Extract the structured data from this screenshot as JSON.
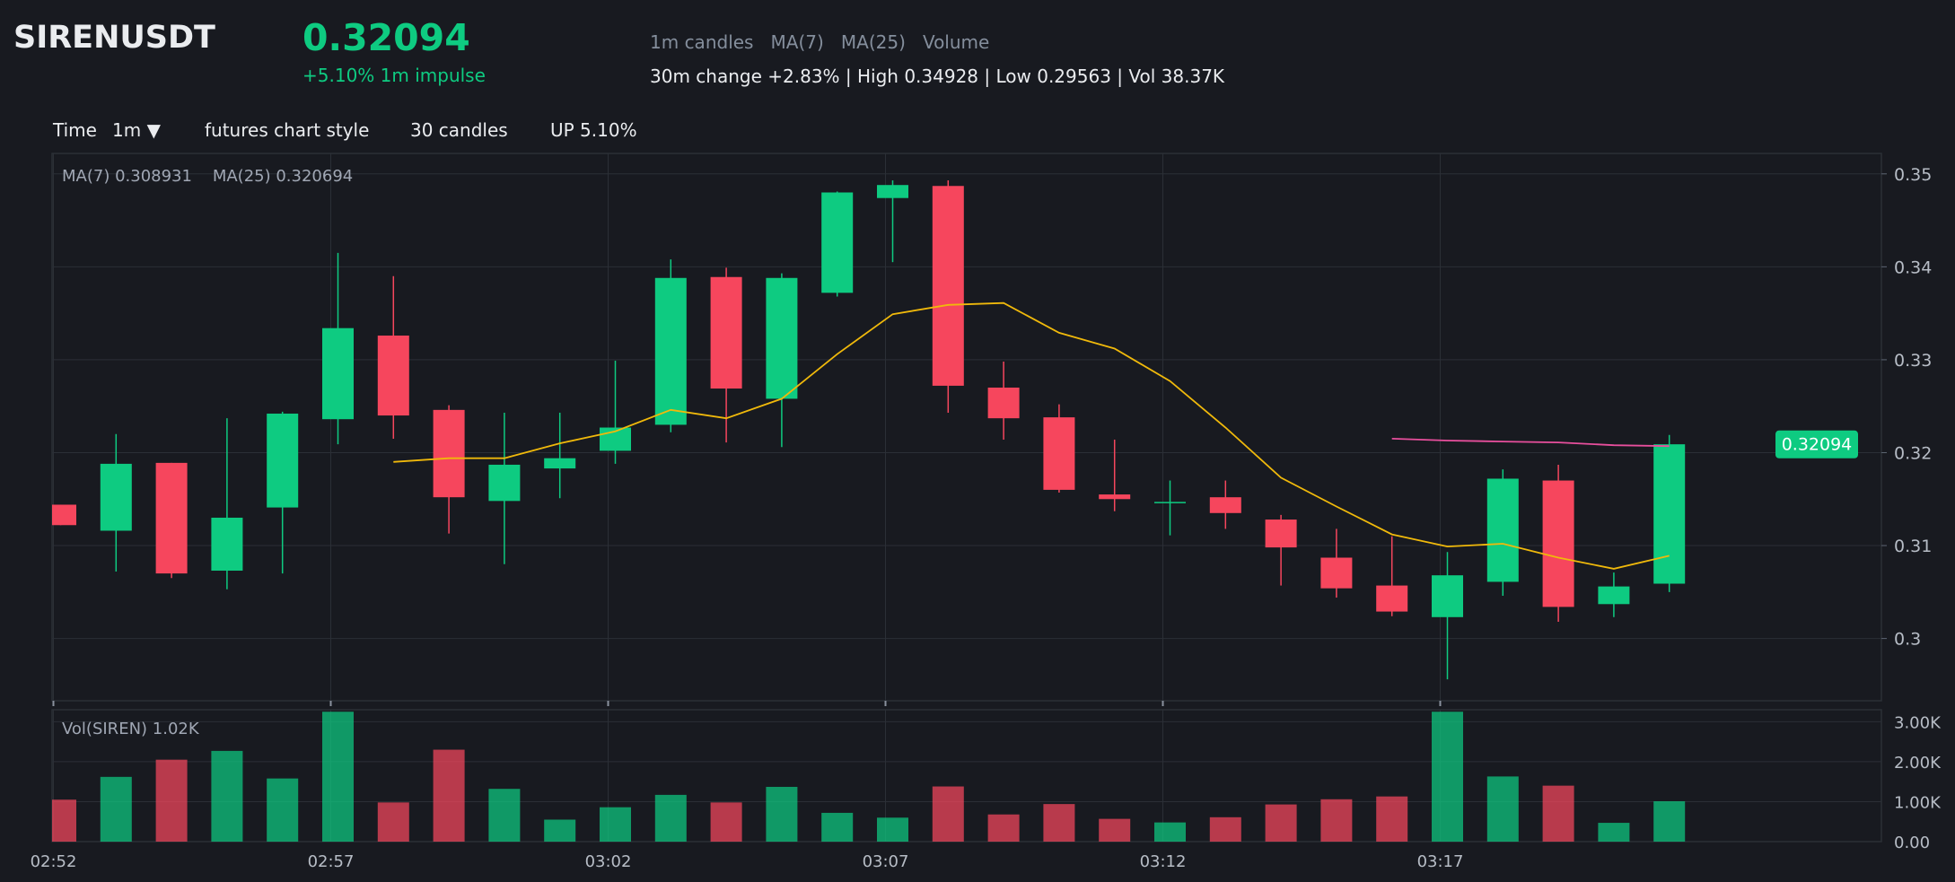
{
  "header": {
    "symbol": "SIRENUSDT",
    "price": "0.32094",
    "impulse": "+5.10% 1m impulse",
    "meta": "1m candles   MA(7)   MA(25)   Volume",
    "stats": "30m change +2.83% | High 0.34928 | Low 0.29563 | Vol 38.37K"
  },
  "toolbar": {
    "time_label": "Time",
    "interval": "1m ▼",
    "style": "futures chart style",
    "candles": "30 candles",
    "direction": "UP 5.10%"
  },
  "legend": {
    "ma": "MA(7) 0.308931    MA(25) 0.320694",
    "volume": "Vol(SIREN) 1.02K"
  },
  "colors": {
    "background": "#181a20",
    "up": "#0ecb81",
    "down": "#f6465d",
    "ma7": "#f0b90b",
    "ma25": "#e84f9d",
    "grid": "#2b2f36",
    "axis_text": "#b7bdc6"
  },
  "chart_data": {
    "type": "candlestick",
    "interval": "1m",
    "price_ticks": [
      0.3,
      0.31,
      0.32,
      0.33,
      0.34,
      0.35
    ],
    "price_range": [
      0.2933,
      0.3522
    ],
    "volume_ticks": [
      "0.00",
      "1.00K",
      "2.00K",
      "3.00K"
    ],
    "volume_range": [
      0,
      3300
    ],
    "time_ticks": [
      "02:52",
      "02:57",
      "03:02",
      "03:07",
      "03:12",
      "03:17"
    ],
    "last_price_label": "0.32094",
    "candles": [
      {
        "t": "02:52",
        "o": 0.3144,
        "h": 0.3144,
        "l": 0.3122,
        "c": 0.3122,
        "v": 1050
      },
      {
        "t": "02:53",
        "o": 0.3116,
        "h": 0.322,
        "l": 0.3072,
        "c": 0.3188,
        "v": 1620
      },
      {
        "t": "02:54",
        "o": 0.3189,
        "h": 0.3189,
        "l": 0.3065,
        "c": 0.307,
        "v": 2050
      },
      {
        "t": "02:55",
        "o": 0.3073,
        "h": 0.3237,
        "l": 0.3053,
        "c": 0.313,
        "v": 2270
      },
      {
        "t": "02:56",
        "o": 0.3141,
        "h": 0.3244,
        "l": 0.307,
        "c": 0.3242,
        "v": 1580
      },
      {
        "t": "02:57",
        "o": 0.3236,
        "h": 0.3415,
        "l": 0.3209,
        "c": 0.3334,
        "v": 3250
      },
      {
        "t": "02:58",
        "o": 0.3326,
        "h": 0.339,
        "l": 0.3215,
        "c": 0.324,
        "v": 980
      },
      {
        "t": "02:59",
        "o": 0.3246,
        "h": 0.3251,
        "l": 0.3113,
        "c": 0.3152,
        "v": 2300
      },
      {
        "t": "03:00",
        "o": 0.3148,
        "h": 0.3243,
        "l": 0.308,
        "c": 0.3187,
        "v": 1320
      },
      {
        "t": "03:01",
        "o": 0.3183,
        "h": 0.3243,
        "l": 0.3151,
        "c": 0.3194,
        "v": 550
      },
      {
        "t": "03:02",
        "o": 0.3202,
        "h": 0.3299,
        "l": 0.3188,
        "c": 0.3227,
        "v": 860
      },
      {
        "t": "03:03",
        "o": 0.323,
        "h": 0.3408,
        "l": 0.3222,
        "c": 0.3388,
        "v": 1170
      },
      {
        "t": "03:04",
        "o": 0.3389,
        "h": 0.3399,
        "l": 0.3211,
        "c": 0.3269,
        "v": 980
      },
      {
        "t": "03:05",
        "o": 0.3258,
        "h": 0.3393,
        "l": 0.3206,
        "c": 0.3388,
        "v": 1370
      },
      {
        "t": "03:06",
        "o": 0.3372,
        "h": 0.3481,
        "l": 0.3368,
        "c": 0.348,
        "v": 720
      },
      {
        "t": "03:07",
        "o": 0.3474,
        "h": 0.3493,
        "l": 0.3405,
        "c": 0.3488,
        "v": 600
      },
      {
        "t": "03:08",
        "o": 0.3487,
        "h": 0.3493,
        "l": 0.3243,
        "c": 0.3272,
        "v": 1380
      },
      {
        "t": "03:09",
        "o": 0.327,
        "h": 0.3298,
        "l": 0.3214,
        "c": 0.3237,
        "v": 680
      },
      {
        "t": "03:10",
        "o": 0.3238,
        "h": 0.3252,
        "l": 0.3157,
        "c": 0.316,
        "v": 940
      },
      {
        "t": "03:11",
        "o": 0.3155,
        "h": 0.3214,
        "l": 0.3137,
        "c": 0.315,
        "v": 570
      },
      {
        "t": "03:12",
        "o": 0.3147,
        "h": 0.317,
        "l": 0.3111,
        "c": 0.3147,
        "v": 480
      },
      {
        "t": "03:13",
        "o": 0.3152,
        "h": 0.317,
        "l": 0.3118,
        "c": 0.3135,
        "v": 610
      },
      {
        "t": "03:14",
        "o": 0.3128,
        "h": 0.3133,
        "l": 0.3057,
        "c": 0.3098,
        "v": 930
      },
      {
        "t": "03:15",
        "o": 0.3087,
        "h": 0.3118,
        "l": 0.3044,
        "c": 0.3054,
        "v": 1060
      },
      {
        "t": "03:16",
        "o": 0.3057,
        "h": 0.311,
        "l": 0.3024,
        "c": 0.3029,
        "v": 1130
      },
      {
        "t": "03:17",
        "o": 0.3023,
        "h": 0.3093,
        "l": 0.2956,
        "c": 0.3068,
        "v": 3250
      },
      {
        "t": "03:18",
        "o": 0.3061,
        "h": 0.3182,
        "l": 0.3046,
        "c": 0.3172,
        "v": 1630
      },
      {
        "t": "03:19",
        "o": 0.317,
        "h": 0.3187,
        "l": 0.3018,
        "c": 0.3034,
        "v": 1400
      },
      {
        "t": "03:20",
        "o": 0.3037,
        "h": 0.3071,
        "l": 0.3023,
        "c": 0.3056,
        "v": 470
      },
      {
        "t": "03:21",
        "o": 0.3059,
        "h": 0.3219,
        "l": 0.305,
        "c": 0.3209,
        "v": 1010
      }
    ],
    "ma7": [
      null,
      null,
      null,
      null,
      null,
      null,
      0.319,
      0.3194,
      0.3194,
      0.321,
      0.3223,
      0.3246,
      0.3237,
      0.3258,
      0.3306,
      0.3349,
      0.3359,
      0.3361,
      0.3329,
      0.3312,
      0.3277,
      0.3227,
      0.3173,
      0.3142,
      0.3112,
      0.3099,
      0.3102,
      0.3087,
      0.3075,
      0.3089
    ],
    "ma25": [
      null,
      null,
      null,
      null,
      null,
      null,
      null,
      null,
      null,
      null,
      null,
      null,
      null,
      null,
      null,
      null,
      null,
      null,
      null,
      null,
      null,
      null,
      null,
      null,
      0.3215,
      0.3213,
      0.3212,
      0.3211,
      0.3208,
      0.3207
    ]
  }
}
